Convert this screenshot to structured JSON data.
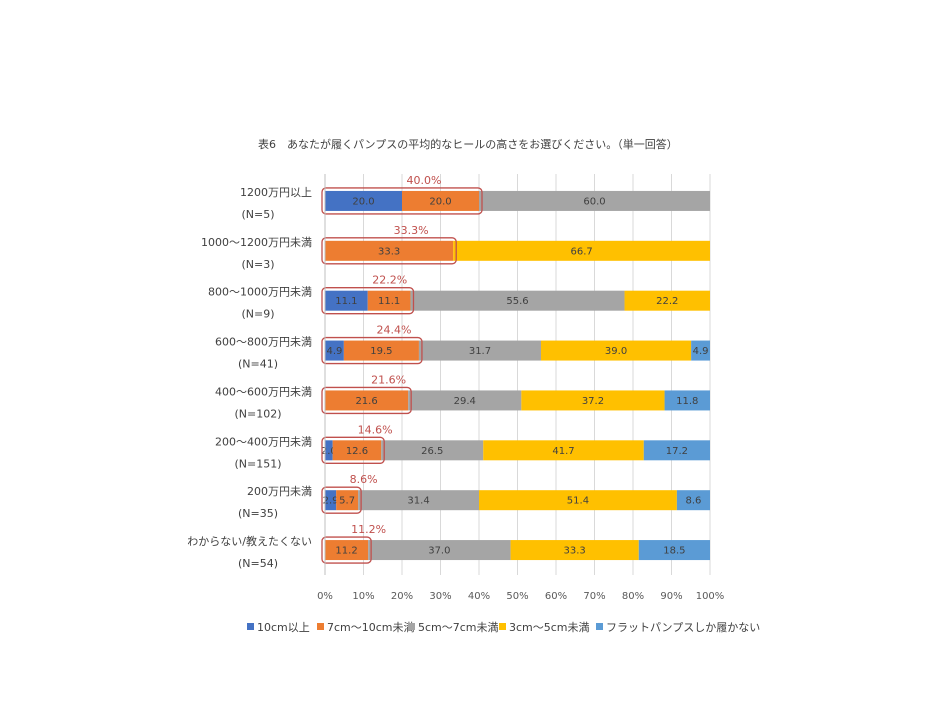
{
  "chart_data": {
    "type": "bar",
    "stacked": "percent",
    "orientation": "horizontal",
    "title": "表6　あなたが履くパンプスの平均的なヒールの高さをお選びください。（単一回答）",
    "xlim": [
      0,
      100
    ],
    "x_ticks": [
      "0%",
      "10%",
      "20%",
      "30%",
      "40%",
      "50%",
      "60%",
      "70%",
      "80%",
      "90%",
      "100%"
    ],
    "grid": true,
    "legend_position": "bottom",
    "categories": [
      {
        "label": "1200万円以上",
        "n": "(N=5)"
      },
      {
        "label": "1000～1200万円未満",
        "n": "(N=3)"
      },
      {
        "label": "800～1000万円未満",
        "n": "(N=9)"
      },
      {
        "label": "600～800万円未満",
        "n": "(N=41)"
      },
      {
        "label": "400～600万円未満",
        "n": "(N=102)"
      },
      {
        "label": "200～400万円未満",
        "n": "(N=151)"
      },
      {
        "label": "200万円未満",
        "n": "(N=35)"
      },
      {
        "label": "わからない/教えたくない",
        "n": "(N=54)"
      }
    ],
    "series": [
      {
        "name": "10cm以上",
        "color": "#4472C4",
        "values": [
          20.0,
          0,
          11.1,
          4.9,
          0,
          2.0,
          2.9,
          0
        ]
      },
      {
        "name": "7cm～10cm未満",
        "color": "#ED7D31",
        "values": [
          20.0,
          33.3,
          11.1,
          19.5,
          21.6,
          12.6,
          5.7,
          11.2
        ]
      },
      {
        "name": "5cm～7cm未満",
        "color": "#A5A5A5",
        "values": [
          60.0,
          0,
          55.6,
          31.7,
          29.4,
          26.5,
          31.4,
          37.0
        ]
      },
      {
        "name": "3cm～5cm未満",
        "color": "#FFC000",
        "values": [
          0,
          66.7,
          22.2,
          39.0,
          37.2,
          41.7,
          51.4,
          33.3
        ]
      },
      {
        "name": "フラットパンプスしか履かない",
        "color": "#5B9BD5",
        "values": [
          0,
          0,
          0,
          4.9,
          11.8,
          17.2,
          8.6,
          18.5
        ]
      }
    ],
    "annotations": {
      "color": "#C0504D",
      "labels": [
        "40.0%",
        "33.3%",
        "22.2%",
        "24.4%",
        "21.6%",
        "14.6%",
        "8.6%",
        "11.2%"
      ]
    }
  }
}
